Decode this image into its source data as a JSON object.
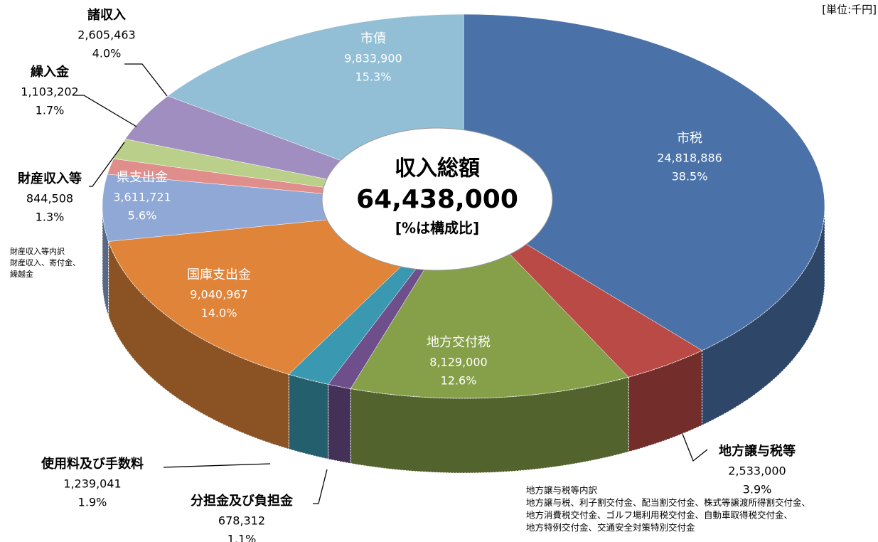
{
  "chart_data": {
    "type": "pie3d",
    "unit_note": "[単位:千円]",
    "center_title": "収入総額",
    "total": 64438000,
    "total_label": "64,438,000",
    "center_note": "[%は構成比]",
    "categories": [
      "市税",
      "地方譲与税等",
      "地方交付税",
      "分担金及び負担金",
      "使用料及び手数料",
      "国庫支出金",
      "県支出金",
      "財産収入等",
      "繰入金",
      "諸収入",
      "市債"
    ],
    "values": [
      24818886,
      2533000,
      8129000,
      678312,
      1239041,
      9040967,
      3611721,
      844508,
      1103202,
      2605463,
      9833900
    ],
    "value_labels": [
      "24,818,886",
      "2,533,000",
      "8,129,000",
      "678,312",
      "1,239,041",
      "9,040,967",
      "3,611,721",
      "844,508",
      "1,103,202",
      "2,605,463",
      "9,833,900"
    ],
    "percents": [
      38.5,
      3.9,
      12.6,
      1.1,
      1.9,
      14.0,
      5.6,
      1.3,
      1.7,
      4.0,
      15.3
    ],
    "percent_labels": [
      "38.5%",
      "3.9%",
      "12.6%",
      "1.1%",
      "1.9%",
      "14.0%",
      "5.6%",
      "1.3%",
      "1.7%",
      "4.0%",
      "15.3%"
    ],
    "colors": [
      "#4a72a8",
      "#b94a45",
      "#86a04a",
      "#6e4f8c",
      "#3a99b0",
      "#e0843a",
      "#8fa8d6",
      "#e08e8c",
      "#b9cf8a",
      "#a08ec0",
      "#92bfd6"
    ],
    "notes": [
      [
        "財産収入等内訳",
        "財産収入、寄付金、",
        "繰越金"
      ],
      [
        "地方譲与税等内訳",
        "地方譲与税、利子割交付金、配当割交付金、株式等譲渡所得割交付金、",
        "地方消費税交付金、ゴルフ場利用税交付金、自動車取得税交付金、",
        "地方特例交付金、交通安全対策特別交付金"
      ]
    ]
  }
}
